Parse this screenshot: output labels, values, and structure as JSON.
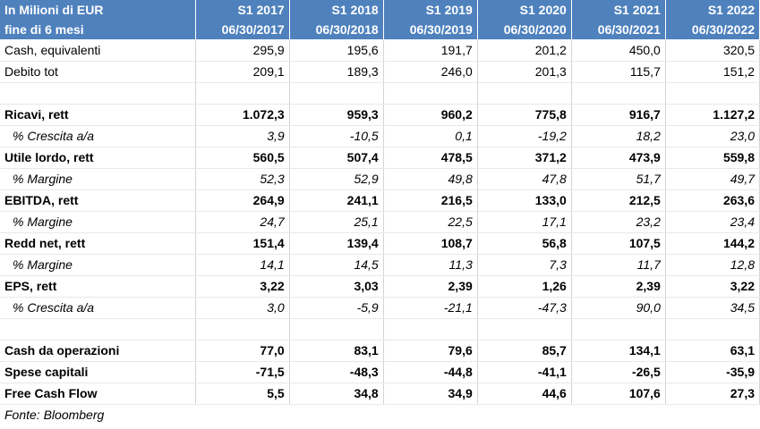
{
  "header": {
    "row1_label": "In Milioni di EUR",
    "row2_label": "fine di 6 mesi",
    "periods": [
      "S1 2017",
      "S1 2018",
      "S1 2019",
      "S1 2020",
      "S1 2021",
      "S1 2022"
    ],
    "dates": [
      "06/30/2017",
      "06/30/2018",
      "06/30/2019",
      "06/30/2020",
      "06/30/2021",
      "06/30/2022"
    ]
  },
  "rows": [
    {
      "label": "Cash, equivalenti",
      "values": [
        "295,9",
        "195,6",
        "191,7",
        "201,2",
        "450,0",
        "320,5"
      ]
    },
    {
      "label": "Debito tot",
      "values": [
        "209,1",
        "189,3",
        "246,0",
        "201,3",
        "115,7",
        "151,2"
      ]
    },
    {
      "label": "",
      "values": [
        "",
        "",
        "",
        "",
        "",
        ""
      ]
    },
    {
      "label": "Ricavi, rett",
      "values": [
        "1.072,3",
        "959,3",
        "960,2",
        "775,8",
        "916,7",
        "1.127,2"
      ]
    },
    {
      "label": "% Crescita a/a",
      "values": [
        "3,9",
        "-10,5",
        "0,1",
        "-19,2",
        "18,2",
        "23,0"
      ]
    },
    {
      "label": "Utile lordo, rett",
      "values": [
        "560,5",
        "507,4",
        "478,5",
        "371,2",
        "473,9",
        "559,8"
      ]
    },
    {
      "label": "% Margine",
      "values": [
        "52,3",
        "52,9",
        "49,8",
        "47,8",
        "51,7",
        "49,7"
      ]
    },
    {
      "label": "EBITDA, rett",
      "values": [
        "264,9",
        "241,1",
        "216,5",
        "133,0",
        "212,5",
        "263,6"
      ]
    },
    {
      "label": "% Margine",
      "values": [
        "24,7",
        "25,1",
        "22,5",
        "17,1",
        "23,2",
        "23,4"
      ]
    },
    {
      "label": "Redd net, rett",
      "values": [
        "151,4",
        "139,4",
        "108,7",
        "56,8",
        "107,5",
        "144,2"
      ]
    },
    {
      "label": "% Margine",
      "values": [
        "14,1",
        "14,5",
        "11,3",
        "7,3",
        "11,7",
        "12,8"
      ]
    },
    {
      "label": "EPS, rett",
      "values": [
        "3,22",
        "3,03",
        "2,39",
        "1,26",
        "2,39",
        "3,22"
      ]
    },
    {
      "label": "% Crescita a/a",
      "values": [
        "3,0",
        "-5,9",
        "-21,1",
        "-47,3",
        "90,0",
        "34,5"
      ]
    },
    {
      "label": "",
      "values": [
        "",
        "",
        "",
        "",
        "",
        ""
      ]
    },
    {
      "label": "Cash da operazioni",
      "values": [
        "77,0",
        "83,1",
        "79,6",
        "85,7",
        "134,1",
        "63,1"
      ]
    },
    {
      "label": "Spese capitali",
      "values": [
        "-71,5",
        "-48,3",
        "-44,8",
        "-41,1",
        "-26,5",
        "-35,9"
      ]
    },
    {
      "label": "Free Cash Flow",
      "values": [
        "5,5",
        "34,8",
        "34,9",
        "44,6",
        "107,6",
        "27,3"
      ]
    }
  ],
  "source": "Fonte: Bloomberg",
  "colors": {
    "header_bg": "#4f81bd",
    "header_text": "#ffffff"
  }
}
